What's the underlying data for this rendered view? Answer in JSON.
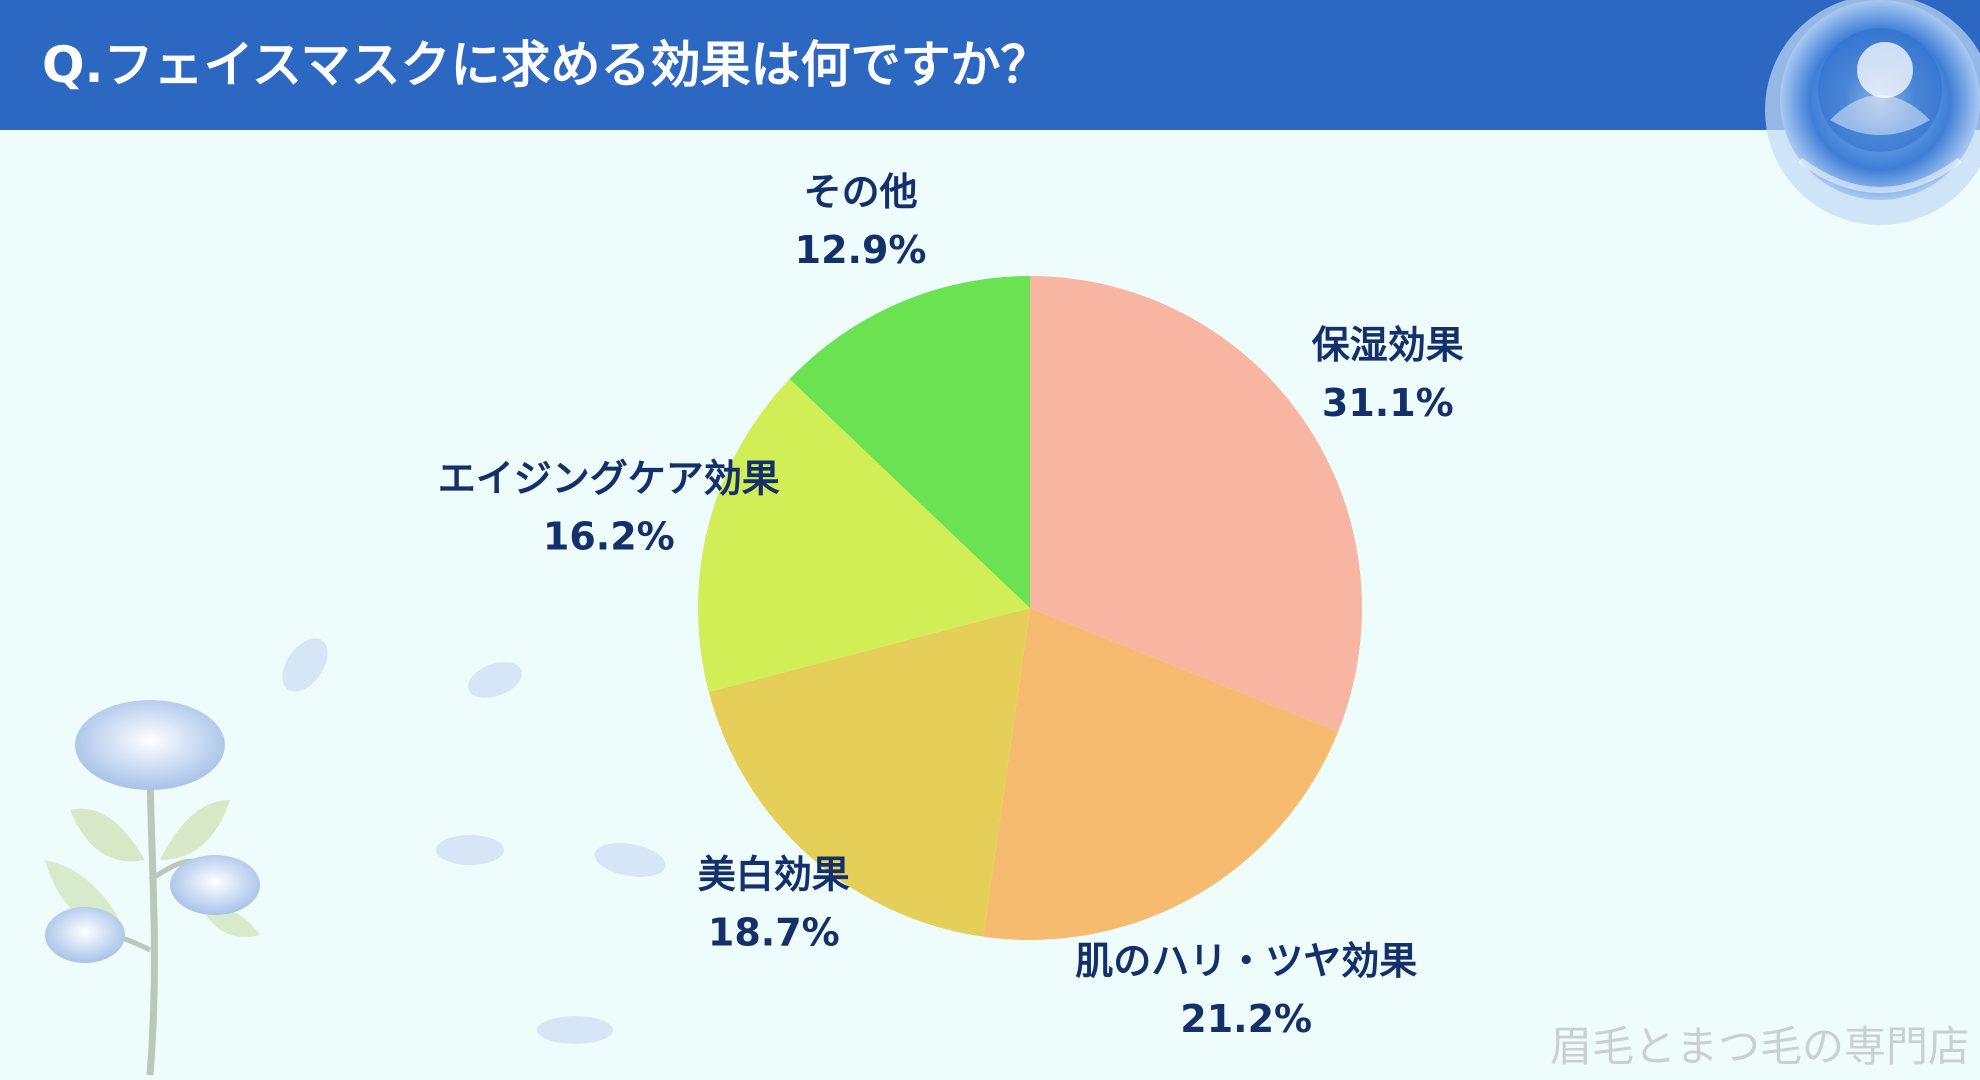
{
  "header": {
    "title": "Q.フェイスマスクに求める効果は何ですか？"
  },
  "chart_data": {
    "type": "pie",
    "title": "Q.フェイスマスクに求める効果は何ですか？",
    "slices": [
      {
        "label": "保湿効果",
        "value": 31.1,
        "value_label": "31.1%",
        "color": "#f8b5a1"
      },
      {
        "label": "肌のハリ・ツヤ効果",
        "value": 21.2,
        "value_label": "21.2%",
        "color": "#f6bb6f"
      },
      {
        "label": "美白効果",
        "value": 18.7,
        "value_label": "18.7%",
        "color": "#e6cf58"
      },
      {
        "label": "エイジングケア効果",
        "value": 16.2,
        "value_label": "16.2%",
        "color": "#d1ee56"
      },
      {
        "label": "その他",
        "value": 12.9,
        "value_label": "12.9%",
        "color": "#6ae252"
      }
    ],
    "start": "12 o'clock",
    "direction": "clockwise"
  },
  "watermark": "眉毛とまつ毛の専門店",
  "colors": {
    "header": "#2c68c2",
    "background": "#eefcfc",
    "label_text": "#14306a",
    "watermark": "#c9cfd3"
  }
}
